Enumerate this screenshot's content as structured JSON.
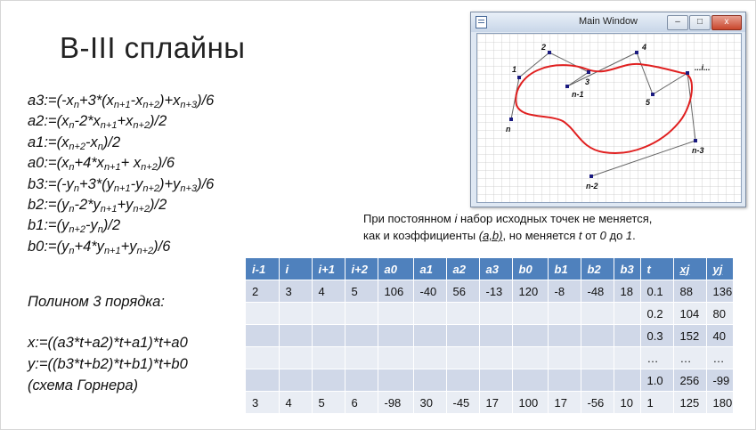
{
  "slide": {
    "title": "B-III сплайны",
    "formulas": [
      [
        [
          "a3:=(-x",
          ""
        ],
        [
          "n",
          "sub"
        ],
        [
          "+3*(x",
          ""
        ],
        [
          "n+1",
          "sub"
        ],
        [
          "-x",
          ""
        ],
        [
          "n+2",
          "sub"
        ],
        [
          ")+x",
          ""
        ],
        [
          "n+3",
          "sub"
        ],
        [
          ")/6",
          ""
        ]
      ],
      [
        [
          "a2:=(x",
          ""
        ],
        [
          "n",
          "sub"
        ],
        [
          "-2*x",
          ""
        ],
        [
          "n+1",
          "sub"
        ],
        [
          "+x",
          ""
        ],
        [
          "n+2",
          "sub"
        ],
        [
          ")/2",
          ""
        ]
      ],
      [
        [
          "a1:=(x",
          ""
        ],
        [
          "n+2",
          "sub"
        ],
        [
          "-x",
          ""
        ],
        [
          "n",
          "sub"
        ],
        [
          ")/2",
          ""
        ]
      ],
      [
        [
          "a0:=(x",
          ""
        ],
        [
          "n",
          "sub"
        ],
        [
          "+4*x",
          ""
        ],
        [
          "n+1",
          "sub"
        ],
        [
          "+ x",
          ""
        ],
        [
          "n+2",
          "sub"
        ],
        [
          ")/6",
          ""
        ]
      ],
      [
        [
          "b3:=(-y",
          ""
        ],
        [
          "n",
          "sub"
        ],
        [
          "+3*(y",
          ""
        ],
        [
          "n+1",
          "sub"
        ],
        [
          "-y",
          ""
        ],
        [
          "n+2",
          "sub"
        ],
        [
          ")+y",
          ""
        ],
        [
          "n+3",
          "sub"
        ],
        [
          ")/6",
          ""
        ]
      ],
      [
        [
          "b2:=(y",
          ""
        ],
        [
          "n",
          "sub"
        ],
        [
          "-2*y",
          ""
        ],
        [
          "n+1",
          "sub"
        ],
        [
          "+y",
          ""
        ],
        [
          "n+2",
          "sub"
        ],
        [
          ")/2",
          ""
        ]
      ],
      [
        [
          "b1:=(y",
          ""
        ],
        [
          "n+2",
          "sub"
        ],
        [
          "-y",
          ""
        ],
        [
          "n",
          "sub"
        ],
        [
          ")/2",
          ""
        ]
      ],
      [
        [
          "b0:=(y",
          ""
        ],
        [
          "n",
          "sub"
        ],
        [
          "+4*y",
          ""
        ],
        [
          "n+1",
          "sub"
        ],
        [
          "+y",
          ""
        ],
        [
          "n+2",
          "sub"
        ],
        [
          ")/6",
          ""
        ]
      ]
    ],
    "polynomial_title": "Полином 3 порядка:",
    "horner_lines": [
      "x:=((a3*t+a2)*t+a1)*t+a0",
      "y:=((b3*t+b2)*t+b1)*t+b0",
      "(схема Горнера)"
    ],
    "note": {
      "line1_a": "При постоянном ",
      "line1_i": "i",
      "line1_b": " набор исходных точек не меняется,",
      "line2_a": "как и коэффициенты ",
      "line2_ab": "(a,b)",
      "line2_b": ", но меняется ",
      "line2_t": "t",
      "line2_c": " от ",
      "line2_0": "0",
      "line2_d": " до ",
      "line2_1": "1",
      "line2_e": "."
    }
  },
  "window": {
    "title": "Main Window",
    "minimize_label": "–",
    "maximize_label": "□",
    "close_label": "x",
    "control_points": [
      {
        "label": "n"
      },
      {
        "label": "1"
      },
      {
        "label": "2"
      },
      {
        "label": "3"
      },
      {
        "label": "n-1"
      },
      {
        "label": "4"
      },
      {
        "label": "5"
      },
      {
        "label": "...i..."
      },
      {
        "label": "n-3"
      },
      {
        "label": "n-2"
      }
    ],
    "colors": {
      "grid": "#c8c8c8",
      "polyline": "#666666",
      "spline": "#e02020",
      "point": "#1a1a80"
    }
  },
  "table": {
    "headers": [
      "i-1",
      "i",
      "i+1",
      "i+2",
      "a0",
      "a1",
      "a2",
      "a3",
      "b0",
      "b1",
      "b2",
      "b3",
      "t",
      "xj",
      "yj"
    ],
    "underlined_headers": [
      "xj",
      "yj"
    ],
    "rows": [
      [
        "2",
        "3",
        "4",
        "5",
        "106",
        "-40",
        "56",
        "-13",
        "120",
        "-8",
        "-48",
        "18",
        "0.1",
        "88",
        "136"
      ],
      [
        "",
        "",
        "",
        "",
        "",
        "",
        "",
        "",
        "",
        "",
        "",
        "",
        "0.2",
        "104",
        "80"
      ],
      [
        "",
        "",
        "",
        "",
        "",
        "",
        "",
        "",
        "",
        "",
        "",
        "",
        "0.3",
        "152",
        "40"
      ],
      [
        "",
        "",
        "",
        "",
        "",
        "",
        "",
        "",
        "",
        "",
        "",
        "",
        "…",
        "…",
        "…"
      ],
      [
        "",
        "",
        "",
        "",
        "",
        "",
        "",
        "",
        "",
        "",
        "",
        "",
        "1.0",
        "256",
        "-99"
      ],
      [
        "3",
        "4",
        "5",
        "6",
        "-98",
        "30",
        "-45",
        "17",
        "100",
        "17",
        "-56",
        "10",
        "1",
        "125",
        "180"
      ]
    ],
    "colors": {
      "header": "#4f81bd",
      "band_dark": "#d0d8e8",
      "band_light": "#e9edf4"
    }
  }
}
